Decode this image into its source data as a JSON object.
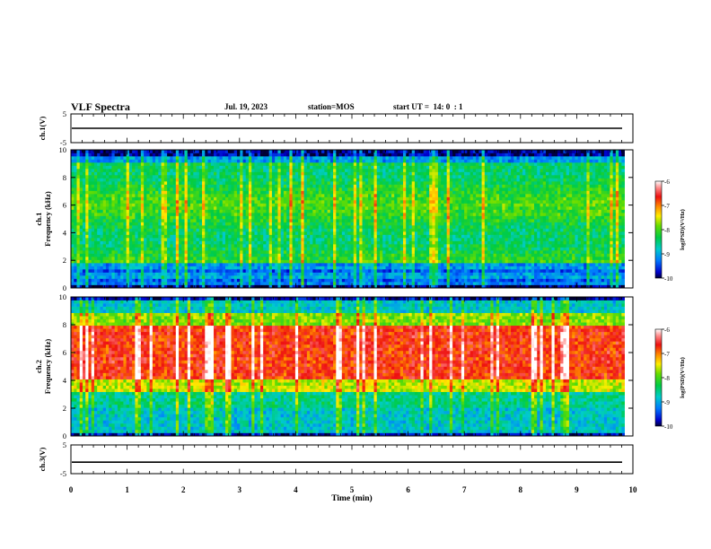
{
  "header": {
    "title": "VLF Spectra",
    "date": "Jul. 19, 2023",
    "station": "station=MOS",
    "start_ut": "start UT =  14: 0  : 1"
  },
  "chart_data": [
    {
      "type": "line",
      "panel": "ch1-waveform",
      "ylabel": "ch.1(V)",
      "ylim": [
        -5,
        5
      ],
      "yticks": [
        "5",
        "-5"
      ],
      "xlim": [
        0,
        10
      ],
      "trace_value": 0,
      "trace_color": "#000000"
    },
    {
      "type": "heatmap",
      "panel": "ch1-spectrogram",
      "ylabel": "ch.1 Frequency (kHz)",
      "ylim": [
        0,
        10
      ],
      "yticks": [
        "0",
        "2",
        "4",
        "6",
        "8",
        "10"
      ],
      "xlim": [
        0,
        10
      ],
      "data_end_min": 9.85,
      "colorbar": {
        "label": "log(PSD)(V²/Hz)",
        "range": [
          -10,
          -6
        ],
        "ticks": [
          "-6",
          "-7",
          "-8",
          "-9",
          "-10"
        ]
      }
    },
    {
      "type": "heatmap",
      "panel": "ch2-spectrogram",
      "ylabel": "ch.2 Frequency (kHz)",
      "ylim": [
        0,
        10
      ],
      "yticks": [
        "0",
        "2",
        "4",
        "6",
        "8",
        "10"
      ],
      "xlim": [
        0,
        10
      ],
      "data_end_min": 9.85,
      "colorbar": {
        "label": "log(PSD)(V²/Hz)",
        "range": [
          -10,
          -6
        ],
        "ticks": [
          "-6",
          "-7",
          "-8",
          "-9",
          "-10"
        ]
      }
    },
    {
      "type": "line",
      "panel": "ch3-waveform",
      "ylabel": "ch.3(V)",
      "ylim": [
        -5,
        5
      ],
      "yticks": [
        "5",
        "-5"
      ],
      "xlim": [
        0,
        10
      ],
      "trace_value": -1,
      "xlabel": "Time (min)",
      "xticks": [
        "0",
        "1",
        "2",
        "3",
        "4",
        "5",
        "6",
        "7",
        "8",
        "9",
        "10"
      ],
      "trace_color": "#000000"
    }
  ]
}
